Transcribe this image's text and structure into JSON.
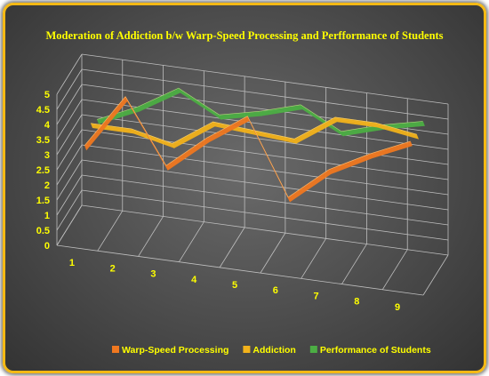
{
  "chart_data": {
    "type": "line",
    "title": "Moderation of Addiction b/w Warp-Speed Processing and Perfformance of Students",
    "categories": [
      "1",
      "2",
      "3",
      "4",
      "5",
      "6",
      "7",
      "8",
      "9"
    ],
    "yticks": [
      "0",
      "0.5",
      "1",
      "1.5",
      "2",
      "2.5",
      "3",
      "3.5",
      "4",
      "4.5",
      "5"
    ],
    "ylim": [
      0,
      5
    ],
    "grid": true,
    "legend_position": "bottom",
    "series": [
      {
        "name": "Warp-Speed Processing",
        "color": "#f07820",
        "values": [
          3.0,
          4.8,
          2.7,
          3.8,
          4.7,
          2.2,
          3.3,
          4.0,
          4.6
        ]
      },
      {
        "name": "Addiction",
        "color": "#f2b21b",
        "values": [
          3.4,
          3.4,
          3.1,
          4.0,
          3.9,
          3.8,
          4.7,
          4.7,
          4.5
        ]
      },
      {
        "name": "Performance of Students",
        "color": "#4cae44",
        "values": [
          3.2,
          3.8,
          4.6,
          3.9,
          4.2,
          4.6,
          3.9,
          4.3,
          4.6
        ]
      }
    ]
  }
}
